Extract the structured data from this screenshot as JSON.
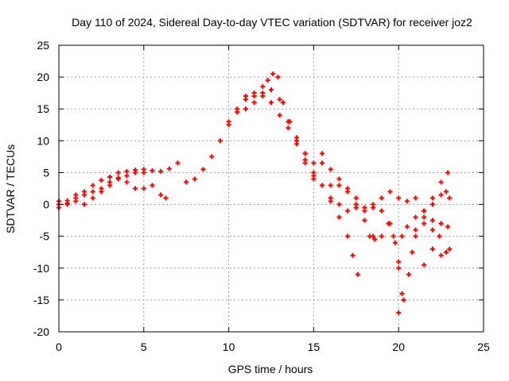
{
  "chart_data": {
    "type": "scatter",
    "title": "Day 110 of 2024, Sidereal Day-to-day VTEC variation (SDTVAR) for receiver joz2",
    "xlabel": "GPS time / hours",
    "ylabel": "SDTVAR / TECUs",
    "xlim": [
      0,
      25
    ],
    "ylim": [
      -20,
      25
    ],
    "xticks": [
      "0",
      "5",
      "10",
      "15",
      "20",
      "25"
    ],
    "yticks": [
      "-20",
      "-15",
      "-10",
      "-5",
      "0",
      "5",
      "10",
      "15",
      "20",
      "25"
    ],
    "grid": true,
    "marker": "plus",
    "color": "#ff0000",
    "series": [
      {
        "x": [
          0,
          0.5,
          1.0,
          1.5,
          2.0,
          2.5,
          3.0,
          3.5,
          4.0,
          4.5,
          5.0,
          5.5,
          6.0,
          6.5,
          7.0,
          7.5,
          8.0,
          8.5,
          9.0,
          9.5,
          10.0,
          10.5,
          11.0,
          11.5,
          12.0,
          12.5,
          13.0,
          13.5,
          14.0,
          14.5,
          15.0,
          15.5,
          16.0,
          16.5,
          17.0,
          17.5,
          18.0,
          18.5,
          19.0,
          19.5
        ],
        "y": [
          0.0,
          0.6,
          1.5,
          2.0,
          3.0,
          3.8,
          4.3,
          5.0,
          5.2,
          5.4,
          5.5,
          5.3,
          5.2,
          5.6,
          6.5,
          3.5,
          4.0,
          5.5,
          7.5,
          10.0,
          12.5,
          14.5,
          16.5,
          17.0,
          17.5,
          18.0,
          16.5,
          13.0,
          10.5,
          8.0,
          5.0,
          3.0,
          1.0,
          0.0,
          -1.0,
          -0.5,
          -0.5,
          0.0,
          1.0,
          2.0
        ]
      },
      {
        "x": [
          0,
          0.5,
          1.0,
          1.5,
          2.0,
          2.5,
          3.0,
          3.5,
          4.0,
          4.5,
          5.0,
          5.5,
          6.0,
          6.3
        ],
        "y": [
          -0.5,
          0.0,
          1.0,
          1.5,
          2.0,
          2.5,
          3.0,
          4.0,
          4.5,
          5.0,
          5.0,
          3.0,
          1.5,
          1.0
        ]
      },
      {
        "x": [
          0,
          0.5,
          1.0,
          1.5,
          2.0,
          2.5,
          3.0,
          3.5,
          4.0,
          4.5,
          5.0
        ],
        "y": [
          0.5,
          0.2,
          0.5,
          0.0,
          1.0,
          2.0,
          3.5,
          4.2,
          3.5,
          2.5,
          2.5
        ]
      },
      {
        "x": [
          10.0,
          10.5,
          11.0,
          11.5,
          12.0,
          12.5,
          13.0,
          13.5,
          14.0,
          14.5,
          15.0,
          15.5,
          16.0,
          16.5,
          17.0,
          17.3,
          17.6
        ],
        "y": [
          13.0,
          15.0,
          15.0,
          16.0,
          17.0,
          16.0,
          14.0,
          12.0,
          9.5,
          6.5,
          4.0,
          3.0,
          0.5,
          -2.0,
          -5.0,
          -8.0,
          -11.0
        ]
      },
      {
        "x": [
          10.5,
          11.0,
          11.5,
          12.0,
          12.3,
          12.6,
          12.9,
          13.2,
          13.6,
          14.0,
          14.5,
          15.0,
          15.5,
          16.0
        ],
        "y": [
          14.5,
          17.0,
          17.5,
          18.5,
          19.5,
          20.5,
          20.0,
          16.0,
          13.0,
          10.0,
          7.0,
          4.5,
          6.5,
          3.0
        ]
      },
      {
        "x": [
          16.5,
          17.0,
          17.5,
          18.0,
          18.5,
          19.0,
          19.5,
          19.8,
          20.0,
          20.2,
          20.5,
          21.0,
          21.5,
          22.0,
          22.5,
          23.0
        ],
        "y": [
          4.0,
          2.0,
          0.0,
          -0.5,
          -0.5,
          -1.0,
          -3.0,
          -6.0,
          -9.0,
          -5.0,
          -3.5,
          -2.0,
          -1.0,
          0.0,
          1.5,
          1.0
        ]
      },
      {
        "x": [
          17.5,
          18.0,
          18.3,
          18.6,
          19.0,
          19.4,
          19.7,
          20.0,
          20.2
        ],
        "y": [
          0.0,
          -2.5,
          -5.0,
          -5.5,
          -5.0,
          -3.0,
          -5.0,
          -10.0,
          -14.0
        ]
      },
      {
        "x": [
          20.0,
          20.3,
          20.6,
          20.8,
          21.0,
          21.5,
          22.0,
          22.5
        ],
        "y": [
          -17.0,
          -15.0,
          -11.0,
          -7.5,
          -4.0,
          -3.0,
          -4.0,
          -3.0
        ]
      },
      {
        "x": [
          20.0,
          20.5,
          21.0,
          21.5,
          22.0,
          22.5,
          22.9
        ],
        "y": [
          1.0,
          0.5,
          1.0,
          -1.0,
          -2.5,
          -3.0,
          -3.5
        ]
      },
      {
        "x": [
          21.5,
          22.0,
          22.4,
          22.8
        ],
        "y": [
          -9.5,
          -7.0,
          -5.0,
          2.0
        ]
      },
      {
        "x": [
          21.0,
          21.5,
          22.0,
          22.5,
          22.9
        ],
        "y": [
          -5.0,
          -2.0,
          1.0,
          3.5,
          5.0
        ]
      },
      {
        "x": [
          22.5,
          22.8,
          23.0
        ],
        "y": [
          -8.0,
          -7.5,
          -7.0
        ]
      },
      {
        "x": [
          14.0,
          14.5,
          15.0,
          15.5,
          16.0,
          16.5,
          17.0,
          17.5,
          18.0,
          18.5
        ],
        "y": [
          10.0,
          8.0,
          6.5,
          8.0,
          5.5,
          3.0,
          2.5,
          1.0,
          -1.0,
          -5.0
        ]
      }
    ]
  }
}
